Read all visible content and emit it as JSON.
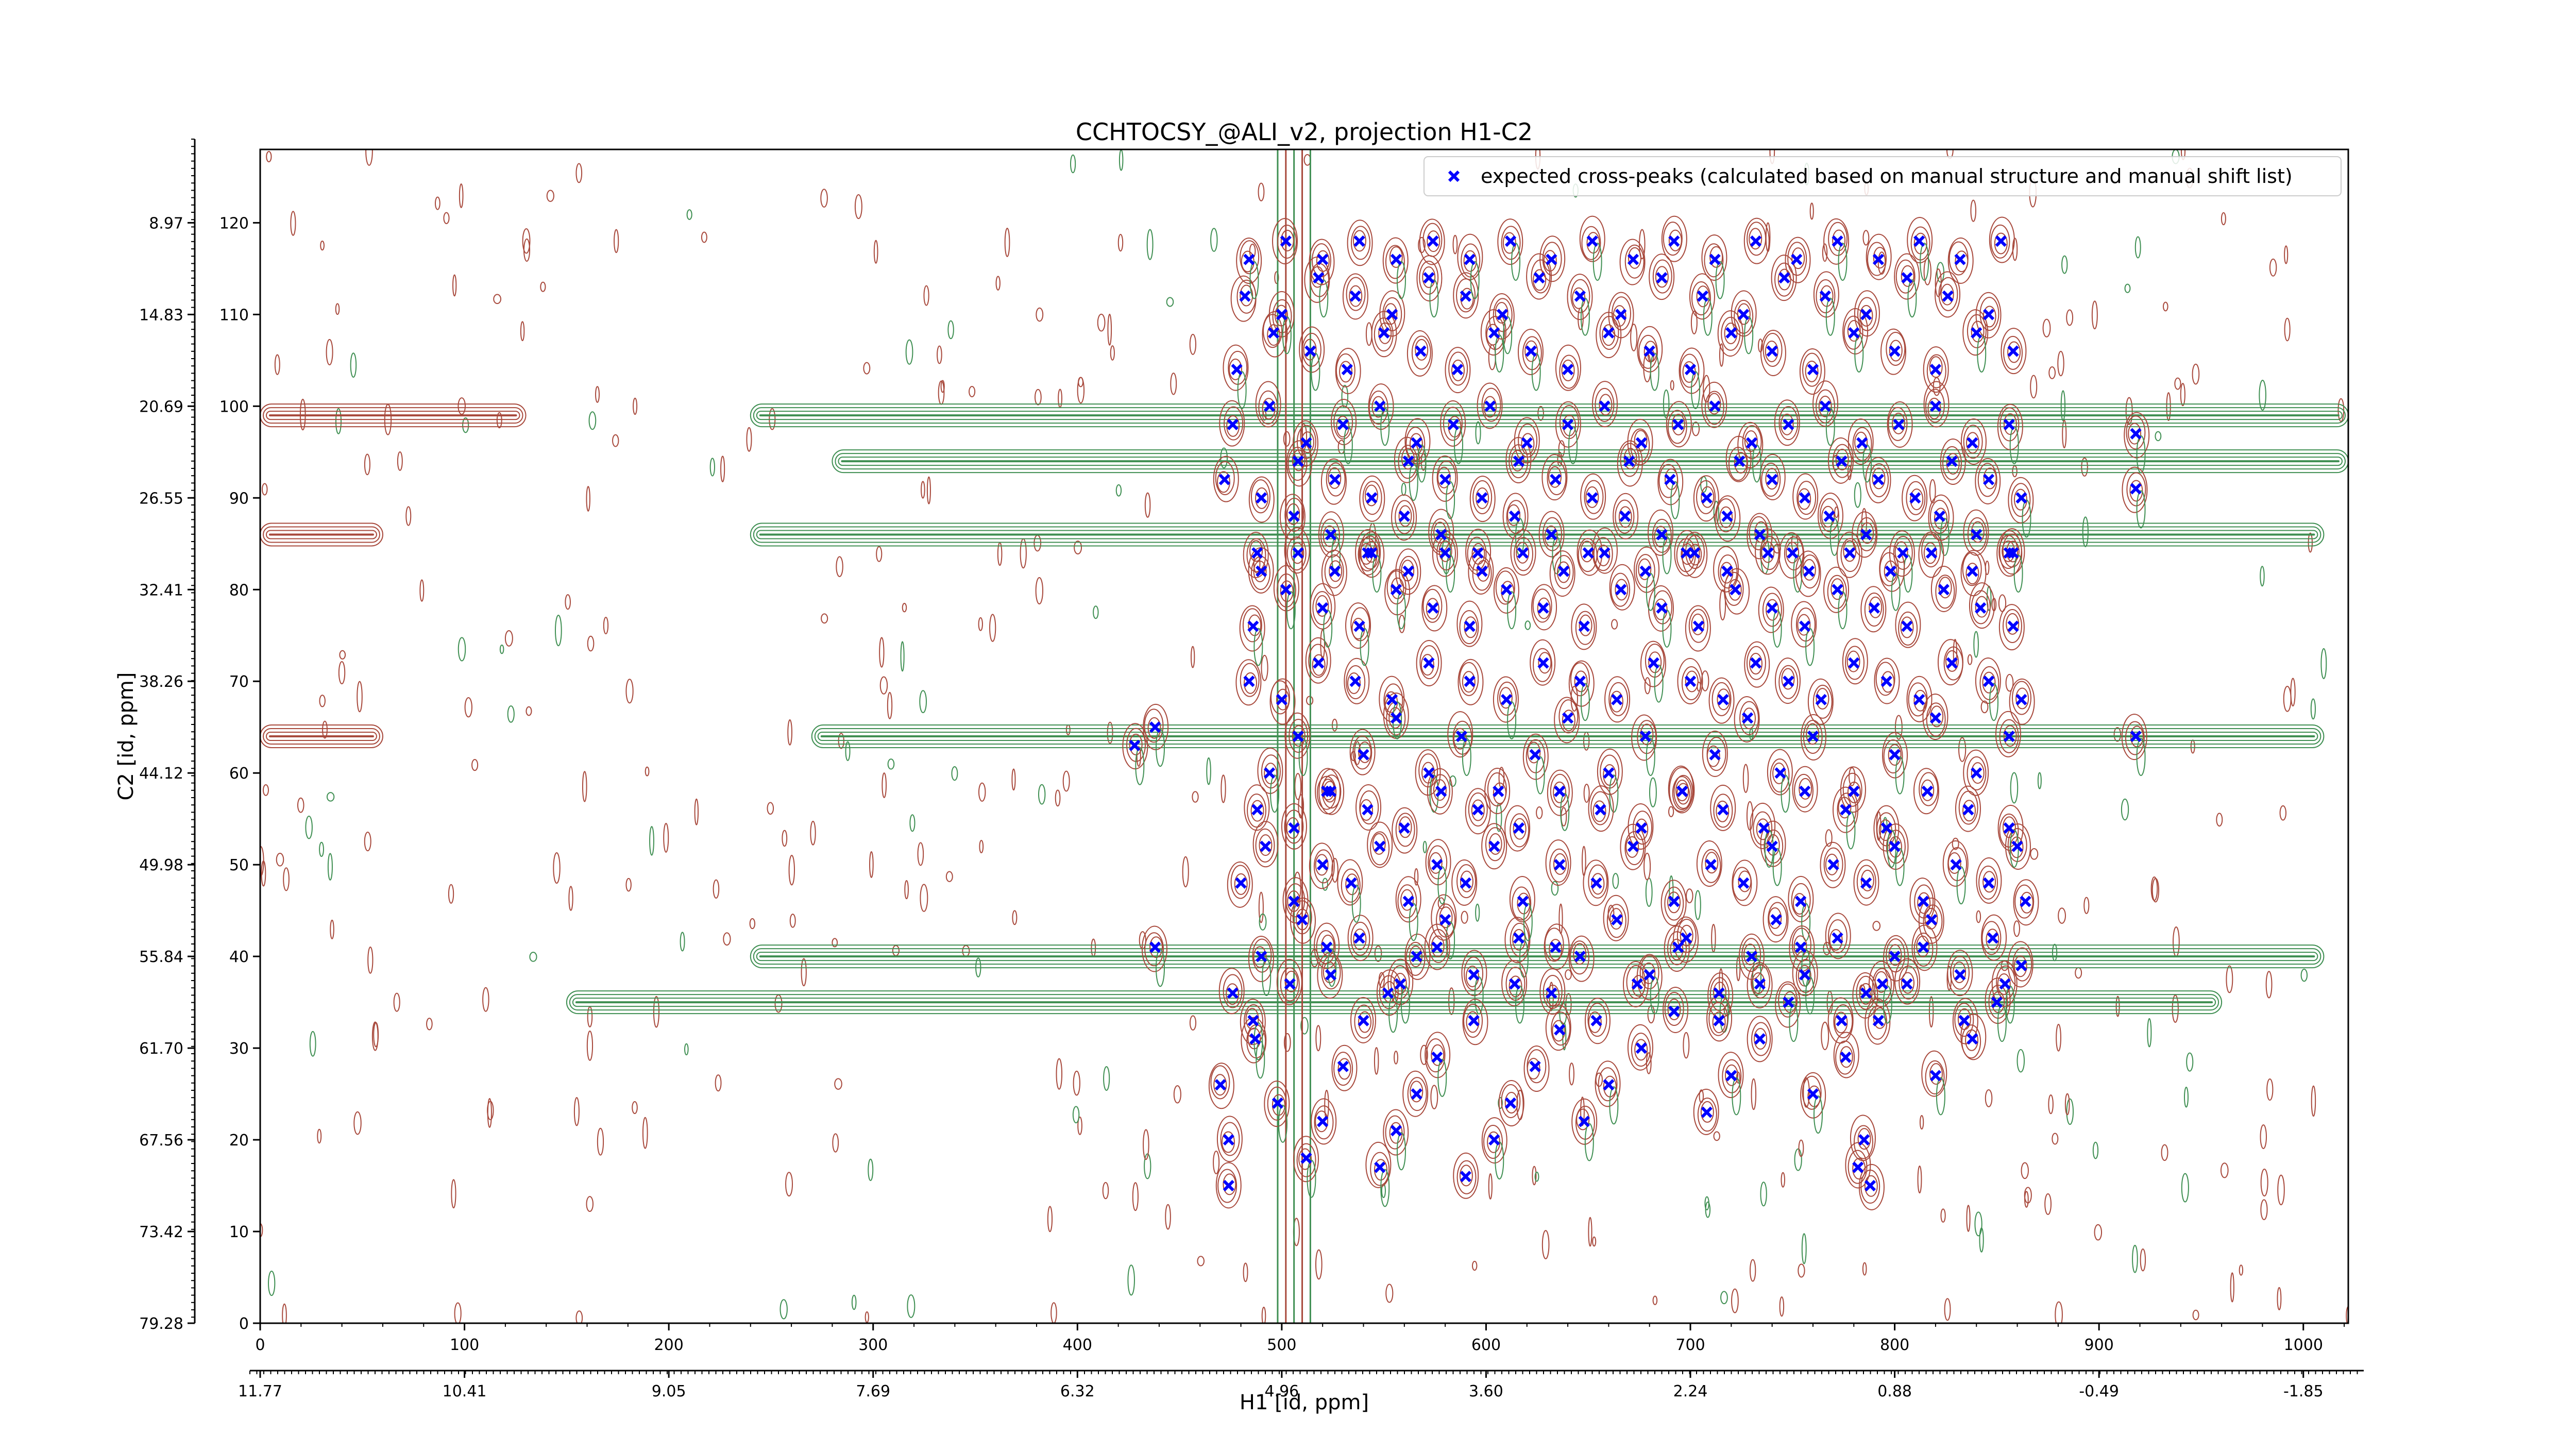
{
  "chart_data": {
    "type": "scatter",
    "title": "CCHTOCSY_@ALI_v2, projection H1-C2",
    "xlabel": "H1 [id, ppm]",
    "ylabel": "C2 [id, ppm]",
    "xlim": [
      0,
      1022
    ],
    "ylim": [
      0,
      128
    ],
    "x_ticks": [
      0,
      100,
      200,
      300,
      400,
      500,
      600,
      700,
      800,
      900,
      1000
    ],
    "y_ticks": [
      0,
      10,
      20,
      30,
      40,
      50,
      60,
      70,
      80,
      90,
      100,
      110,
      120
    ],
    "x_ppm_ticks": [
      "11.77",
      "10.41",
      "9.05",
      "7.69",
      "6.32",
      "4.96",
      "3.60",
      "2.24",
      "0.88",
      "-0.49",
      "-1.85"
    ],
    "y_ppm_ticks": [
      "79.28",
      "73.42",
      "67.56",
      "61.70",
      "55.84",
      "49.98",
      "44.12",
      "38.26",
      "32.41",
      "26.55",
      "20.69",
      "14.83",
      "8.97"
    ],
    "grid": false,
    "legend_position": "top-right",
    "legend_entries": [
      "expected cross-peaks (calculated based on manual structure and manual shift list)"
    ],
    "colors": {
      "positive_contours": "#a8493c",
      "negative_contours": "#3f8f52",
      "peaks": "#0000ff"
    },
    "bands": [
      {
        "c2": 99,
        "h1_from": 0,
        "h1_to": 130,
        "sign": "positive"
      },
      {
        "c2": 99,
        "h1_from": 240,
        "h1_to": 1022,
        "sign": "negative"
      },
      {
        "c2": 94,
        "h1_from": 280,
        "h1_to": 1022,
        "sign": "negative"
      },
      {
        "c2": 86,
        "h1_from": 0,
        "h1_to": 60,
        "sign": "positive"
      },
      {
        "c2": 86,
        "h1_from": 240,
        "h1_to": 1010,
        "sign": "negative"
      },
      {
        "c2": 64,
        "h1_from": 0,
        "h1_to": 60,
        "sign": "positive"
      },
      {
        "c2": 64,
        "h1_from": 270,
        "h1_to": 1010,
        "sign": "negative"
      },
      {
        "c2": 40,
        "h1_from": 240,
        "h1_to": 1010,
        "sign": "negative"
      },
      {
        "c2": 35,
        "h1_from": 150,
        "h1_to": 960,
        "sign": "negative"
      }
    ],
    "series": [
      {
        "name": "expected cross-peaks (calculated based on manual structure and manual shift list)",
        "marker": "x",
        "x": [
          474,
          474,
          470,
          487,
          498,
          512,
          520,
          530,
          548,
          556,
          566,
          576,
          590,
          604,
          612,
          624,
          636,
          648,
          660,
          676,
          692,
          708,
          720,
          734,
          748,
          760,
          776,
          792,
          806,
          820,
          838,
          850,
          862,
          476,
          490,
          510,
          524,
          538,
          552,
          566,
          580,
          594,
          616,
          632,
          646,
          664,
          680,
          698,
          714,
          730,
          742,
          756,
          772,
          786,
          800,
          818,
          832,
          848,
          864,
          480,
          492,
          506,
          520,
          534,
          548,
          562,
          576,
          590,
          604,
          618,
          636,
          654,
          672,
          692,
          710,
          726,
          740,
          754,
          770,
          786,
          800,
          814,
          830,
          846,
          860,
          494,
          508,
          522,
          540,
          556,
          572,
          588,
          606,
          624,
          640,
          660,
          678,
          696,
          712,
          728,
          744,
          760,
          780,
          800,
          820,
          840,
          856,
          484,
          500,
          518,
          536,
          554,
          572,
          592,
          610,
          628,
          646,
          664,
          682,
          700,
          716,
          732,
          748,
          764,
          780,
          796,
          812,
          828,
          846,
          862,
          486,
          502,
          520,
          538,
          556,
          574,
          592,
          610,
          628,
          648,
          666,
          686,
          704,
          722,
          740,
          756,
          772,
          790,
          806,
          824,
          842,
          858,
          488,
          506,
          524,
          542,
          560,
          578,
          596,
          614,
          632,
          650,
          668,
          686,
          702,
          718,
          734,
          750,
          768,
          786,
          804,
          822,
          840,
          856,
          472,
          490,
          508,
          526,
          544,
          562,
          580,
          598,
          616,
          634,
          652,
          670,
          690,
          708,
          724,
          740,
          756,
          774,
          792,
          810,
          828,
          846,
          862,
          476,
          494,
          512,
          530,
          548,
          566,
          584,
          602,
          620,
          640,
          658,
          676,
          694,
          712,
          730,
          748,
          766,
          784,
          802,
          820,
          838,
          856,
          478,
          496,
          514,
          532,
          550,
          568,
          586,
          604,
          622,
          640,
          660,
          680,
          700,
          720,
          740,
          760,
          780,
          800,
          820,
          840,
          858,
          482,
          500,
          518,
          536,
          554,
          572,
          590,
          608,
          626,
          646,
          666,
          686,
          706,
          726,
          746,
          766,
          786,
          806,
          826,
          846,
          484,
          502,
          520,
          538,
          556,
          574,
          592,
          612,
          632,
          652,
          672,
          692,
          712,
          732,
          752,
          772,
          792,
          812,
          832,
          852,
          486,
          504,
          522,
          540,
          558,
          576,
          594,
          614,
          634,
          654,
          674,
          694,
          714,
          734,
          754,
          774,
          794,
          814,
          834,
          854,
          488,
          506,
          524,
          542,
          560,
          578,
          596,
          616,
          636,
          656,
          676,
          696,
          716,
          736,
          756,
          776,
          796,
          816,
          836,
          856,
          490,
          508,
          526,
          544,
          562,
          580,
          598,
          618,
          638,
          658,
          678,
          698,
          718,
          738,
          758,
          778,
          798,
          818,
          838,
          858,
          438,
          438,
          918,
          918,
          918,
          428,
          782,
          785,
          788
        ],
        "y": [
          15,
          20,
          26,
          31,
          24,
          18,
          22,
          28,
          17,
          21,
          25,
          29,
          16,
          20,
          24,
          28,
          32,
          22,
          26,
          30,
          34,
          23,
          27,
          31,
          35,
          25,
          29,
          33,
          37,
          27,
          31,
          35,
          39,
          36,
          40,
          44,
          38,
          42,
          36,
          40,
          44,
          38,
          42,
          36,
          40,
          44,
          38,
          42,
          36,
          40,
          44,
          38,
          42,
          36,
          40,
          44,
          38,
          42,
          46,
          48,
          52,
          46,
          50,
          48,
          52,
          46,
          50,
          48,
          52,
          46,
          50,
          48,
          52,
          46,
          50,
          48,
          52,
          46,
          50,
          48,
          52,
          46,
          50,
          48,
          52,
          60,
          64,
          58,
          62,
          66,
          60,
          64,
          58,
          62,
          66,
          60,
          64,
          58,
          62,
          66,
          60,
          64,
          58,
          62,
          66,
          60,
          64,
          70,
          68,
          72,
          70,
          68,
          72,
          70,
          68,
          72,
          70,
          68,
          72,
          70,
          68,
          72,
          70,
          68,
          72,
          70,
          68,
          72,
          70,
          68,
          76,
          80,
          78,
          76,
          80,
          78,
          76,
          80,
          78,
          76,
          80,
          78,
          76,
          80,
          78,
          76,
          80,
          78,
          76,
          80,
          78,
          76,
          84,
          88,
          86,
          84,
          88,
          86,
          84,
          88,
          86,
          84,
          88,
          86,
          84,
          88,
          86,
          84,
          88,
          86,
          84,
          88,
          86,
          84,
          92,
          90,
          94,
          92,
          90,
          94,
          92,
          90,
          94,
          92,
          90,
          94,
          92,
          90,
          94,
          92,
          90,
          94,
          92,
          90,
          94,
          92,
          90,
          98,
          100,
          96,
          98,
          100,
          96,
          98,
          100,
          96,
          98,
          100,
          96,
          98,
          100,
          96,
          98,
          100,
          96,
          98,
          100,
          96,
          98,
          104,
          108,
          106,
          104,
          108,
          106,
          104,
          108,
          106,
          104,
          108,
          106,
          104,
          108,
          106,
          104,
          108,
          106,
          104,
          108,
          106,
          112,
          110,
          114,
          112,
          110,
          114,
          112,
          110,
          114,
          112,
          110,
          114,
          112,
          110,
          114,
          112,
          110,
          114,
          112,
          110,
          116,
          118,
          116,
          118,
          116,
          118,
          116,
          118,
          116,
          118,
          116,
          118,
          116,
          118,
          116,
          118,
          116,
          118,
          116,
          118,
          33,
          37,
          41,
          33,
          37,
          41,
          33,
          37,
          41,
          33,
          37,
          41,
          33,
          37,
          41,
          33,
          37,
          41,
          33,
          37,
          56,
          54,
          58,
          56,
          54,
          58,
          56,
          54,
          58,
          56,
          54,
          58,
          56,
          54,
          58,
          56,
          54,
          58,
          56,
          54,
          82,
          84,
          82,
          84,
          82,
          84,
          82,
          84,
          82,
          84,
          82,
          84,
          82,
          84,
          82,
          84,
          82,
          84,
          82,
          84,
          65,
          41,
          97,
          91,
          64,
          63,
          17,
          20,
          15
        ]
      }
    ]
  }
}
